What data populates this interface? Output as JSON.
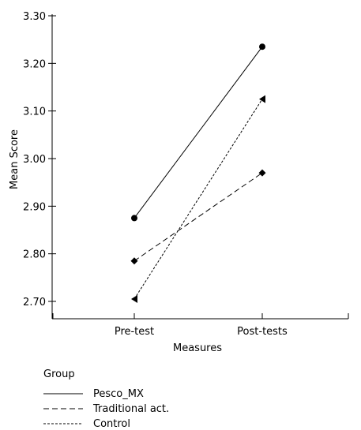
{
  "chart_data": {
    "type": "line",
    "title": "",
    "xlabel": "Measures",
    "ylabel": "Mean Score",
    "categories": [
      "Pre-test",
      "Post-tests"
    ],
    "ylim": [
      2.7,
      3.3
    ],
    "yticks": [
      "2.70",
      "2.80",
      "2.90",
      "3.00",
      "3.10",
      "3.20",
      "3.30"
    ],
    "grid": false,
    "legend": {
      "title": "Group",
      "placement": "bottom-left"
    },
    "series": [
      {
        "name": "Pesco_MX",
        "values": [
          2.875,
          3.235
        ],
        "marker": "circle",
        "dash": "solid"
      },
      {
        "name": "Traditional act.",
        "values": [
          2.785,
          2.97
        ],
        "marker": "diamond",
        "dash": "dashed"
      },
      {
        "name": "Control",
        "values": [
          2.705,
          3.125
        ],
        "marker": "triangle",
        "dash": "dotted"
      }
    ]
  }
}
